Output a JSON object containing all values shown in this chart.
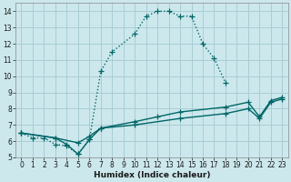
{
  "title": "",
  "xlabel": "Humidex (Indice chaleur)",
  "bg_color": "#cce8ed",
  "line_color": "#006666",
  "grid_color": "#a8cdd4",
  "xlim": [
    -0.5,
    23.5
  ],
  "ylim": [
    5,
    14.5
  ],
  "xticks": [
    0,
    1,
    2,
    3,
    4,
    5,
    6,
    7,
    8,
    9,
    10,
    11,
    12,
    13,
    14,
    15,
    16,
    17,
    18,
    19,
    20,
    21,
    22,
    23
  ],
  "yticks": [
    5,
    6,
    7,
    8,
    9,
    10,
    11,
    12,
    13,
    14
  ],
  "curve1_x": [
    0,
    1,
    2,
    3,
    4,
    5,
    6,
    7,
    8,
    10,
    11,
    12,
    13,
    14,
    15,
    16,
    17,
    18
  ],
  "curve1_y": [
    6.5,
    6.2,
    6.2,
    5.8,
    5.7,
    5.2,
    6.1,
    10.3,
    11.5,
    12.6,
    13.7,
    14.0,
    14.0,
    13.7,
    13.7,
    12.0,
    11.1,
    9.6
  ],
  "curve2_x": [
    0,
    3,
    4,
    5,
    6,
    7,
    10,
    12,
    14,
    18,
    20,
    21,
    22,
    23
  ],
  "curve2_y": [
    6.5,
    6.2,
    5.8,
    5.2,
    6.1,
    6.8,
    7.2,
    7.5,
    7.8,
    8.1,
    8.4,
    7.5,
    8.5,
    8.7
  ],
  "curve3_x": [
    0,
    3,
    5,
    6,
    7,
    10,
    14,
    18,
    20,
    21,
    22,
    23
  ],
  "curve3_y": [
    6.5,
    6.2,
    5.9,
    6.3,
    6.8,
    7.0,
    7.4,
    7.7,
    8.0,
    7.4,
    8.4,
    8.6
  ],
  "marker_size": 4,
  "line_width": 1.0,
  "tick_fontsize": 5.5,
  "xlabel_fontsize": 6.5
}
